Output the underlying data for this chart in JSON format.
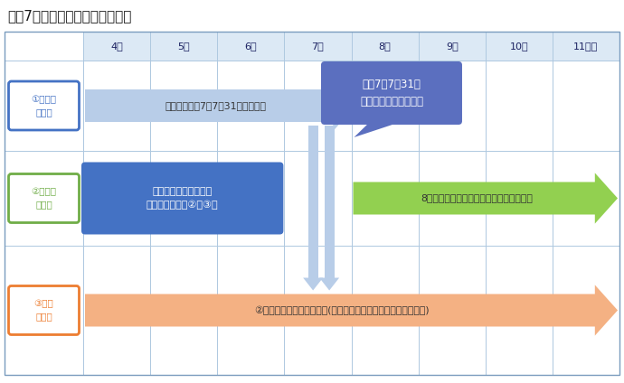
{
  "title": "令和7年度の保険証スケジュール",
  "title_fontsize": 11,
  "bg_color": "#ffffff",
  "grid_color": "#aec8e0",
  "header_bg": "#dce9f5",
  "months": [
    "4月",
    "5月",
    "6月",
    "7月",
    "8月",
    "9月",
    "10月",
    "11月〜"
  ],
  "row_labels": [
    "①現行の\n保険証",
    "②マイナ\n保険証",
    "③資格\n確認書"
  ],
  "row_label_colors": [
    "#4472c4",
    "#70ad47",
    "#ed7d31"
  ],
  "callout_text": "令和7年7月31日\n保険証の有効期間終了",
  "callout_bg": "#5b6fbf",
  "arrow1_text": "引き続き令和7年7月31日まで有効",
  "arrow1_color": "#b8cde8",
  "blue_box_text": "住所変更や負担割合の\n変更があれば、②か③へ",
  "blue_box_color": "#4472c4",
  "arrow2_text": "8月までに「資格確認のお知らせ」を発行",
  "arrow2_color": "#92d050",
  "arrow3_text": "②を持っていない方へ発行(保険証と同じように毎年更新の予定)",
  "arrow3_color": "#f4b183",
  "down_arrow_color": "#b8cde8",
  "text_dark": "#333333",
  "text_blue_dark": "#1a2060"
}
